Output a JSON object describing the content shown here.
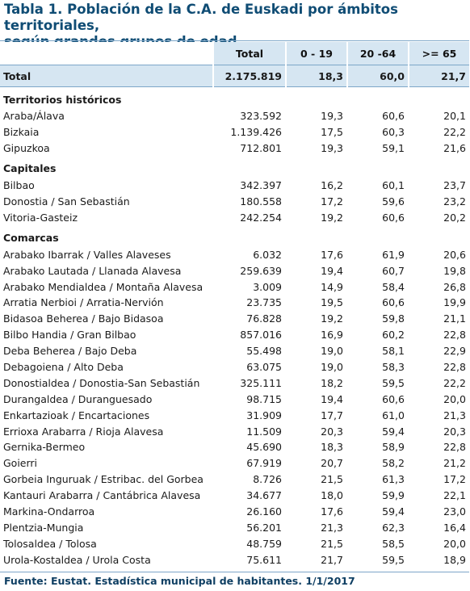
{
  "title_line1": "Tabla 1. Población de la C.A. de Euskadi por ámbitos territoriales,",
  "title_line2": "según grandes grupos de edad",
  "headers": [
    "Total",
    "0 - 19",
    "20 -64",
    ">= 65"
  ],
  "total_row": {
    "label": "Total",
    "total": "2.175.819",
    "a": "18,3",
    "b": "60,0",
    "c": "21,7"
  },
  "sections": [
    {
      "title": "Territorios históricos",
      "rows": [
        {
          "label": "Araba/Álava",
          "total": "323.592",
          "a": "19,3",
          "b": "60,6",
          "c": "20,1"
        },
        {
          "label": "Bizkaia",
          "total": "1.139.426",
          "a": "17,5",
          "b": "60,3",
          "c": "22,2"
        },
        {
          "label": "Gipuzkoa",
          "total": "712.801",
          "a": "19,3",
          "b": "59,1",
          "c": "21,6"
        }
      ]
    },
    {
      "title": "Capitales",
      "rows": [
        {
          "label": "Bilbao",
          "total": "342.397",
          "a": "16,2",
          "b": "60,1",
          "c": "23,7"
        },
        {
          "label": "Donostia / San Sebastián",
          "total": "180.558",
          "a": "17,2",
          "b": "59,6",
          "c": "23,2"
        },
        {
          "label": "Vitoria-Gasteiz",
          "total": "242.254",
          "a": "19,2",
          "b": "60,6",
          "c": "20,2"
        }
      ]
    },
    {
      "title": "Comarcas",
      "rows": [
        {
          "label": "Arabako Ibarrak / Valles Alaveses",
          "total": "6.032",
          "a": "17,6",
          "b": "61,9",
          "c": "20,6"
        },
        {
          "label": "Arabako Lautada / Llanada Alavesa",
          "total": "259.639",
          "a": "19,4",
          "b": "60,7",
          "c": "19,8"
        },
        {
          "label": "Arabako Mendialdea / Montaña Alavesa",
          "total": "3.009",
          "a": "14,9",
          "b": "58,4",
          "c": "26,8"
        },
        {
          "label": "Arratia Nerbioi / Arratia-Nervión",
          "total": "23.735",
          "a": "19,5",
          "b": "60,6",
          "c": "19,9"
        },
        {
          "label": "Bidasoa Beherea / Bajo Bidasoa",
          "total": "76.828",
          "a": "19,2",
          "b": "59,8",
          "c": "21,1"
        },
        {
          "label": "Bilbo Handia / Gran Bilbao",
          "total": "857.016",
          "a": "16,9",
          "b": "60,2",
          "c": "22,8"
        },
        {
          "label": "Deba Beherea / Bajo Deba",
          "total": "55.498",
          "a": "19,0",
          "b": "58,1",
          "c": "22,9"
        },
        {
          "label": "Debagoiena / Alto Deba",
          "total": "63.075",
          "a": "19,0",
          "b": "58,3",
          "c": "22,8"
        },
        {
          "label": "Donostialdea / Donostia-San Sebastián",
          "total": "325.111",
          "a": "18,2",
          "b": "59,5",
          "c": "22,2"
        },
        {
          "label": "Durangaldea / Duranguesado",
          "total": "98.715",
          "a": "19,4",
          "b": "60,6",
          "c": "20,0"
        },
        {
          "label": "Enkartazioak / Encartaciones",
          "total": "31.909",
          "a": "17,7",
          "b": "61,0",
          "c": "21,3"
        },
        {
          "label": "Errioxa Arabarra / Rioja Alavesa",
          "total": "11.509",
          "a": "20,3",
          "b": "59,4",
          "c": "20,3"
        },
        {
          "label": "Gernika-Bermeo",
          "total": "45.690",
          "a": "18,3",
          "b": "58,9",
          "c": "22,8"
        },
        {
          "label": "Goierri",
          "total": "67.919",
          "a": "20,7",
          "b": "58,2",
          "c": "21,2"
        },
        {
          "label": "Gorbeia Inguruak / Estribac. del Gorbea",
          "total": "8.726",
          "a": "21,5",
          "b": "61,3",
          "c": "17,2"
        },
        {
          "label": "Kantauri Arabarra / Cantábrica Alavesa",
          "total": "34.677",
          "a": "18,0",
          "b": "59,9",
          "c": "22,1"
        },
        {
          "label": "Markina-Ondarroa",
          "total": "26.160",
          "a": "17,6",
          "b": "59,4",
          "c": "23,0"
        },
        {
          "label": "Plentzia-Mungia",
          "total": "56.201",
          "a": "21,3",
          "b": "62,3",
          "c": "16,4"
        },
        {
          "label": "Tolosaldea / Tolosa",
          "total": "48.759",
          "a": "21,5",
          "b": "58,5",
          "c": "20,0"
        },
        {
          "label": "Urola-Kostaldea / Urola Costa",
          "total": "75.611",
          "a": "21,7",
          "b": "59,5",
          "c": "18,9"
        }
      ]
    }
  ],
  "footer": "Fuente: Eustat. Estadística municipal de habitantes. 1/1/2017",
  "colors": {
    "title": "#0f4c74",
    "header_bg": "#d6e6f2",
    "rule": "#7da6c8"
  }
}
